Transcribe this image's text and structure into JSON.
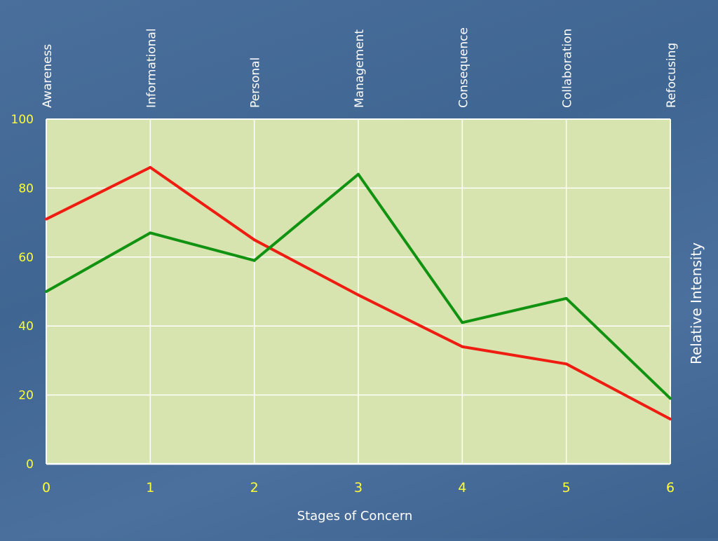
{
  "chart_data": {
    "type": "line",
    "x": [
      0,
      1,
      2,
      3,
      4,
      5,
      6
    ],
    "x_tick_labels": [
      "0",
      "1",
      "2",
      "3",
      "4",
      "5",
      "6"
    ],
    "y_tick_labels": [
      "0",
      "20",
      "40",
      "60",
      "80",
      "100"
    ],
    "ylim": [
      0,
      100
    ],
    "xlim": [
      0,
      6
    ],
    "stage_labels": [
      "Awareness",
      "Informational",
      "Personal",
      "Management",
      "Consequence",
      "Collaboration",
      "Refocusing"
    ],
    "xlabel": "Stages of Concern",
    "ylabel": "Relative Intensity",
    "grid": true,
    "series": [
      {
        "color": "#ee1c11",
        "values": [
          71,
          86,
          65,
          49,
          34,
          29,
          13
        ]
      },
      {
        "color": "#119211",
        "values": [
          50,
          67,
          59,
          84,
          41,
          48,
          19
        ]
      }
    ],
    "colors": {
      "plot_background": "#d7e4b0",
      "grid": "#ffffff",
      "tick_labels": "#ffff33",
      "text": "#ffffff"
    }
  }
}
